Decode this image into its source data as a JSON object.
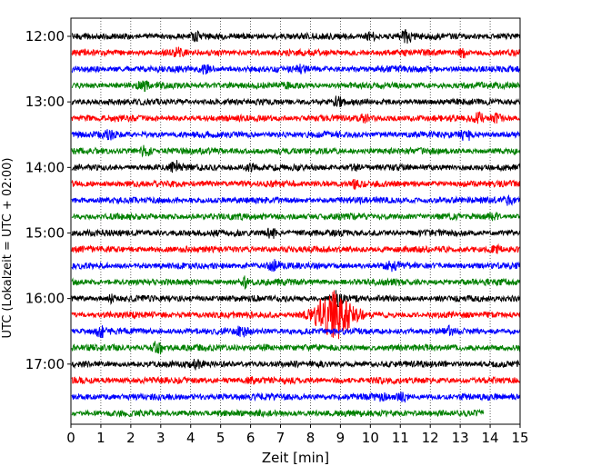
{
  "chart_data": {
    "type": "line",
    "title": "",
    "xlabel": "Zeit  [min]",
    "ylabel": "UTC (Lokalzeit = UTC + 02:00)",
    "xlim": [
      0,
      15
    ],
    "x_ticks": [
      "0",
      "1",
      "2",
      "3",
      "4",
      "5",
      "6",
      "7",
      "8",
      "9",
      "10",
      "11",
      "12",
      "13",
      "14",
      "15"
    ],
    "y_ticks": [
      "12:00",
      "13:00",
      "14:00",
      "15:00",
      "16:00",
      "17:00"
    ],
    "row_interval_min": 15,
    "row_colors": [
      "#000000",
      "#ff0000",
      "#0000ff",
      "#008000"
    ],
    "grid": "vertical dotted lines at each minute",
    "traces": [
      {
        "start": "12:00",
        "events": [
          [
            4.2,
            0.5
          ],
          [
            10.0,
            0.5
          ],
          [
            11.2,
            1.0
          ]
        ]
      },
      {
        "start": "12:15",
        "events": [
          [
            3.6,
            0.5
          ],
          [
            13.1,
            0.6
          ]
        ]
      },
      {
        "start": "12:30",
        "events": [
          [
            4.5,
            0.5
          ],
          [
            7.7,
            0.4
          ]
        ]
      },
      {
        "start": "12:45",
        "events": [
          [
            2.4,
            0.5
          ],
          [
            7.2,
            0.3
          ]
        ]
      },
      {
        "start": "13:00",
        "events": [
          [
            8.9,
            0.6
          ]
        ]
      },
      {
        "start": "13:15",
        "events": [
          [
            9.8,
            0.4
          ],
          [
            13.6,
            0.8
          ],
          [
            14.2,
            0.5
          ]
        ]
      },
      {
        "start": "13:30",
        "events": [
          [
            1.3,
            0.5
          ],
          [
            13.2,
            0.8
          ]
        ]
      },
      {
        "start": "13:45",
        "events": [
          [
            2.5,
            0.7
          ]
        ]
      },
      {
        "start": "14:00",
        "events": [
          [
            3.5,
            0.7
          ],
          [
            6.0,
            0.4
          ],
          [
            9.5,
            0.3
          ]
        ]
      },
      {
        "start": "14:15",
        "events": [
          [
            9.5,
            0.5
          ]
        ]
      },
      {
        "start": "14:30",
        "events": [
          [
            14.6,
            0.5
          ]
        ]
      },
      {
        "start": "14:45",
        "events": [
          [
            14.1,
            0.5
          ]
        ]
      },
      {
        "start": "15:00",
        "events": [
          [
            6.7,
            0.7
          ]
        ]
      },
      {
        "start": "15:15",
        "events": [
          [
            14.2,
            0.4
          ]
        ]
      },
      {
        "start": "15:30",
        "events": [
          [
            6.8,
            0.6
          ],
          [
            10.7,
            0.5
          ]
        ]
      },
      {
        "start": "15:45",
        "events": [
          [
            5.8,
            0.7
          ]
        ]
      },
      {
        "start": "16:00",
        "events": [
          [
            1.3,
            0.4
          ],
          [
            8.9,
            1.0
          ]
        ]
      },
      {
        "start": "16:15",
        "events": [
          [
            8.8,
            3.5
          ]
        ]
      },
      {
        "start": "16:30",
        "events": [
          [
            1.0,
            0.7
          ],
          [
            5.7,
            0.6
          ],
          [
            12.6,
            0.5
          ]
        ]
      },
      {
        "start": "16:45",
        "events": [
          [
            2.9,
            0.9
          ],
          [
            6.5,
            0.3
          ]
        ]
      },
      {
        "start": "17:00",
        "events": [
          [
            4.2,
            0.5
          ]
        ]
      },
      {
        "start": "17:15",
        "events": [
          [
            6.0,
            0.3
          ]
        ]
      },
      {
        "start": "17:30",
        "events": [
          [
            10.3,
            0.6
          ],
          [
            11.1,
            0.5
          ]
        ]
      },
      {
        "start": "17:45",
        "end_min": 13.8,
        "events": []
      }
    ]
  }
}
